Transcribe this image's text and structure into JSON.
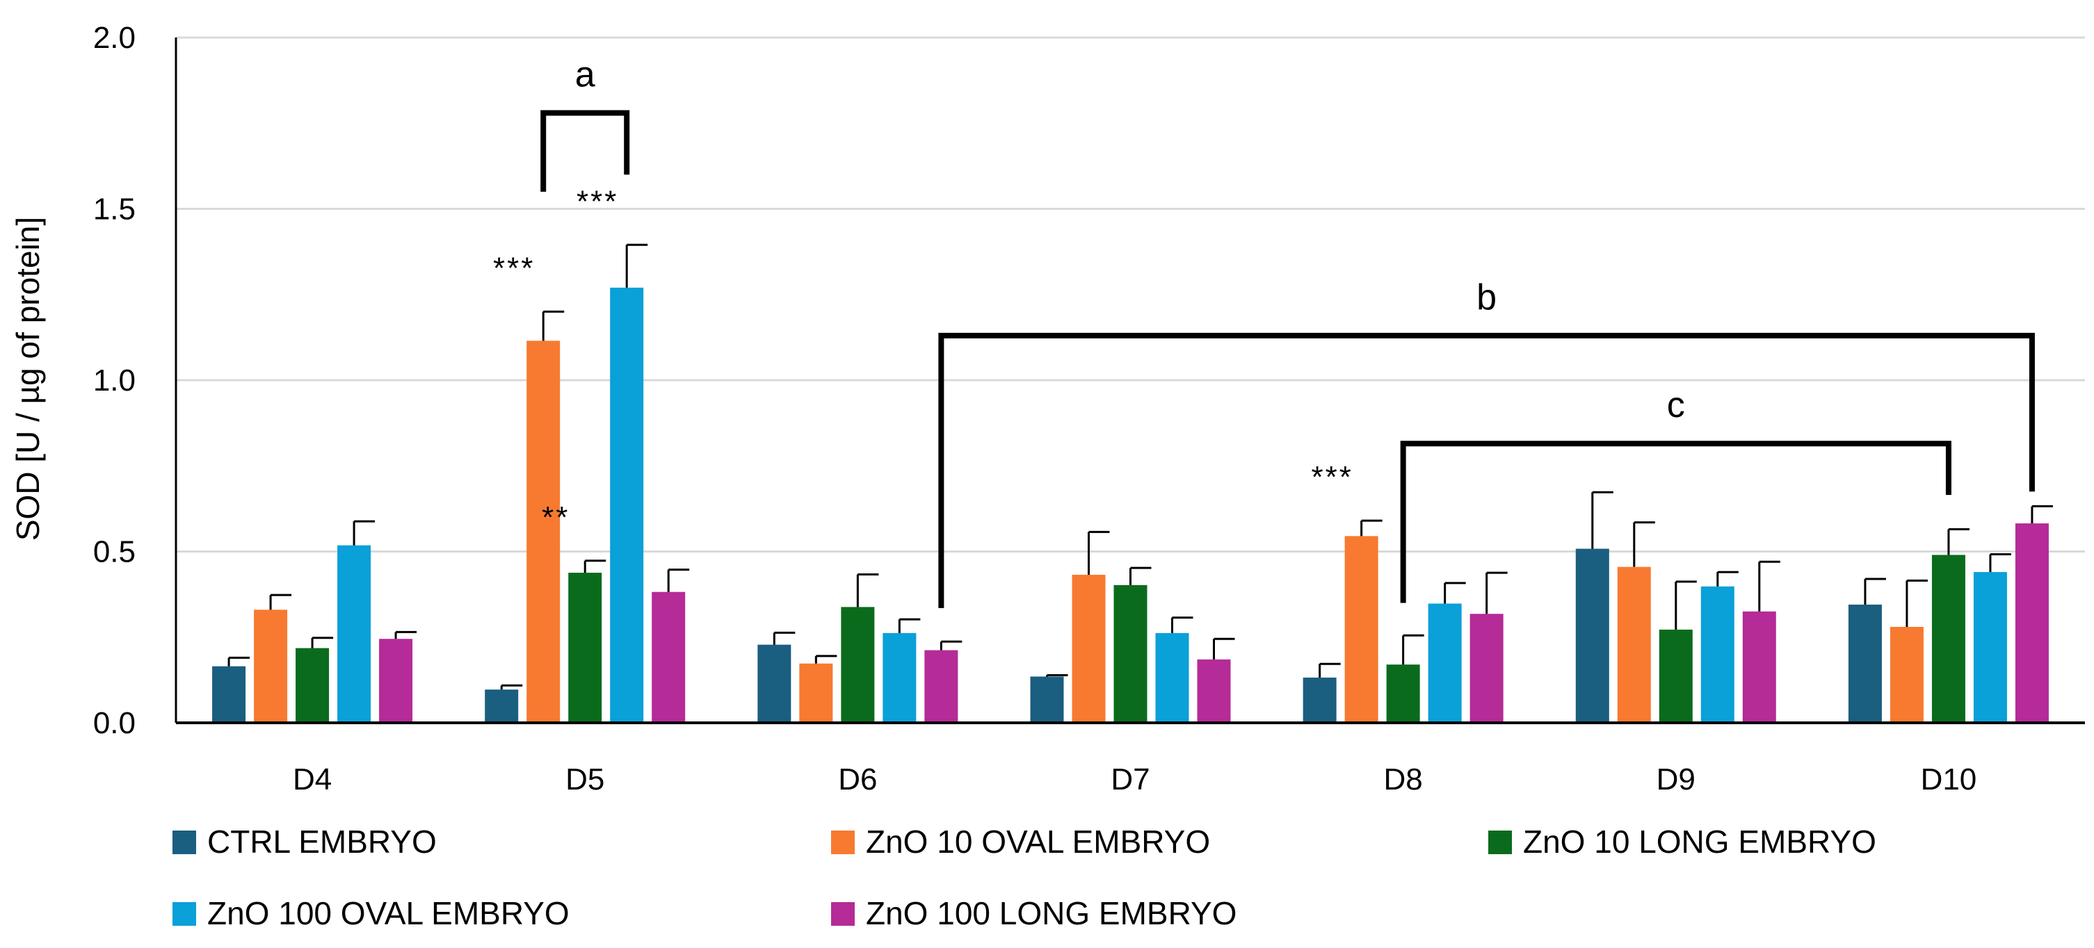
{
  "chart_data": {
    "type": "bar",
    "title": "",
    "xlabel": "",
    "ylabel": "SOD [U / µg of protein]",
    "ylim": [
      0,
      2.0
    ],
    "yticks": [
      "0.0",
      "0.5",
      "1.0",
      "1.5",
      "2.0"
    ],
    "grid": true,
    "legend_position": "bottom",
    "categories": [
      "D4",
      "D5",
      "D6",
      "D7",
      "D8",
      "D9",
      "D10"
    ],
    "series": [
      {
        "name": "CTRL EMBRYO",
        "color": "#1a5e80",
        "values": [
          0.165,
          0.097,
          0.228,
          0.135,
          0.132,
          0.508,
          0.345
        ],
        "errors": [
          0.025,
          0.012,
          0.035,
          0.004,
          0.04,
          0.165,
          0.075
        ]
      },
      {
        "name": "ZnO 10 OVAL EMBRYO",
        "color": "#f77a30",
        "values": [
          0.33,
          1.115,
          0.173,
          0.432,
          0.545,
          0.455,
          0.28
        ],
        "errors": [
          0.043,
          0.085,
          0.022,
          0.125,
          0.045,
          0.13,
          0.135
        ]
      },
      {
        "name": "ZnO 10 LONG EMBRYO",
        "color": "#0b6b1c",
        "values": [
          0.218,
          0.438,
          0.338,
          0.402,
          0.17,
          0.272,
          0.49
        ],
        "errors": [
          0.03,
          0.035,
          0.095,
          0.05,
          0.085,
          0.14,
          0.075
        ]
      },
      {
        "name": "ZnO 100 OVAL EMBRYO",
        "color": "#0aa0d8",
        "values": [
          0.518,
          1.27,
          0.262,
          0.262,
          0.348,
          0.398,
          0.44
        ],
        "errors": [
          0.07,
          0.125,
          0.04,
          0.045,
          0.06,
          0.042,
          0.052
        ]
      },
      {
        "name": "ZnO 100 LONG EMBRYO",
        "color": "#b52b97",
        "values": [
          0.245,
          0.382,
          0.212,
          0.185,
          0.318,
          0.325,
          0.582
        ],
        "errors": [
          0.02,
          0.065,
          0.025,
          0.06,
          0.12,
          0.145,
          0.05
        ]
      }
    ],
    "significance": [
      {
        "category": "D5",
        "series": 1,
        "label": "***"
      },
      {
        "category": "D5",
        "series": 2,
        "label": "**"
      },
      {
        "category": "D5",
        "series": 3,
        "label": "***"
      },
      {
        "category": "D8",
        "series": 1,
        "label": "***"
      }
    ],
    "brackets": [
      {
        "label": "a",
        "from": {
          "category": "D5",
          "series": 1
        },
        "to": {
          "category": "D5",
          "series": 3
        },
        "value": 1.78,
        "end_value_from": 1.55,
        "end_value_to": 1.6
      },
      {
        "label": "b",
        "from": {
          "category": "D6",
          "series": 4
        },
        "to": {
          "category": "D10",
          "series": 4
        },
        "value": 1.13,
        "end_value_from": 0.335,
        "end_value_to": 0.675
      },
      {
        "label": "c",
        "from": {
          "category": "D8",
          "series": 2
        },
        "to": {
          "category": "D10",
          "series": 2
        },
        "value": 0.815,
        "end_value_from": 0.35,
        "end_value_to": 0.665
      }
    ]
  }
}
